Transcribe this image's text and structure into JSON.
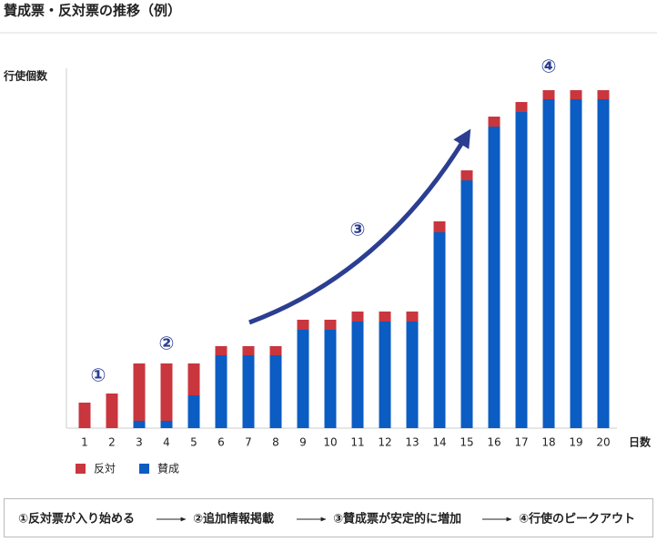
{
  "chart_data": {
    "type": "stacked-bar",
    "title": "賛成票・反対票の推移（例）",
    "y_label": "行使個数",
    "x_label": "日数",
    "categories": [
      "1",
      "2",
      "3",
      "4",
      "5",
      "6",
      "7",
      "8",
      "9",
      "10",
      "11",
      "12",
      "13",
      "14",
      "15",
      "16",
      "17",
      "18",
      "19",
      "20"
    ],
    "series": [
      {
        "name": "反対",
        "color": "#c9363e",
        "values": [
          28,
          38,
          63,
          63,
          35,
          10,
          10,
          10,
          11,
          11,
          11,
          11,
          11,
          12,
          11,
          11,
          11,
          10,
          10,
          10
        ]
      },
      {
        "name": "賛成",
        "color": "#0b5cc3",
        "values": [
          0,
          0,
          8,
          8,
          36,
          80,
          80,
          80,
          108,
          108,
          117,
          117,
          117,
          215,
          272,
          331,
          347,
          361,
          361,
          361
        ]
      }
    ],
    "ylim": [
      0,
      400
    ],
    "annotations": [
      "①",
      "②",
      "③",
      "④"
    ],
    "flow": [
      "①反対票が入り始める",
      "②追加情報掲載",
      "③賛成票が安定的に増加",
      "④行使のピークアウト"
    ]
  }
}
